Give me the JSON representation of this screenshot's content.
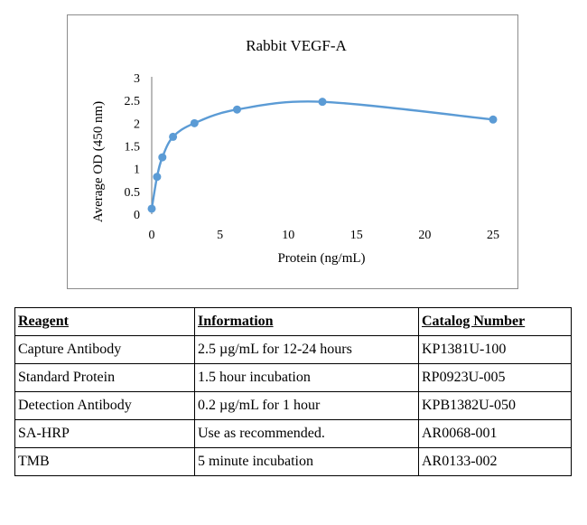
{
  "chart_data": {
    "type": "line",
    "title": "Rabbit VEGF-A",
    "xlabel": "Protein (ng/mL)",
    "ylabel": "Average OD (450 nm)",
    "xlim": [
      0,
      25
    ],
    "ylim": [
      0,
      3
    ],
    "xticks": [
      "0",
      "5",
      "10",
      "15",
      "20",
      "25"
    ],
    "yticks": [
      "0",
      "0.5",
      "1",
      "1.5",
      "2",
      "2.5",
      "3"
    ],
    "grid": false,
    "legend": "none",
    "series_color": "#5b9bd5",
    "series": [
      {
        "x": [
          0,
          0.39,
          0.78,
          1.56,
          3.13,
          6.25,
          12.5,
          25
        ],
        "y": [
          0.12,
          0.82,
          1.25,
          1.7,
          2.0,
          2.3,
          2.47,
          2.08
        ]
      }
    ]
  },
  "table": {
    "headers": [
      "Reagent",
      "Information",
      "Catalog Number"
    ],
    "rows": [
      [
        "Capture Antibody",
        "2.5 µg/mL for 12-24 hours",
        "KP1381U-100"
      ],
      [
        "Standard Protein",
        "1.5 hour incubation",
        "RP0923U-005"
      ],
      [
        "Detection Antibody",
        "0.2 µg/mL for 1 hour",
        "KPB1382U-050"
      ],
      [
        "SA-HRP",
        "Use as recommended.",
        "AR0068-001"
      ],
      [
        "TMB",
        "5 minute incubation",
        "AR0133-002"
      ]
    ]
  }
}
